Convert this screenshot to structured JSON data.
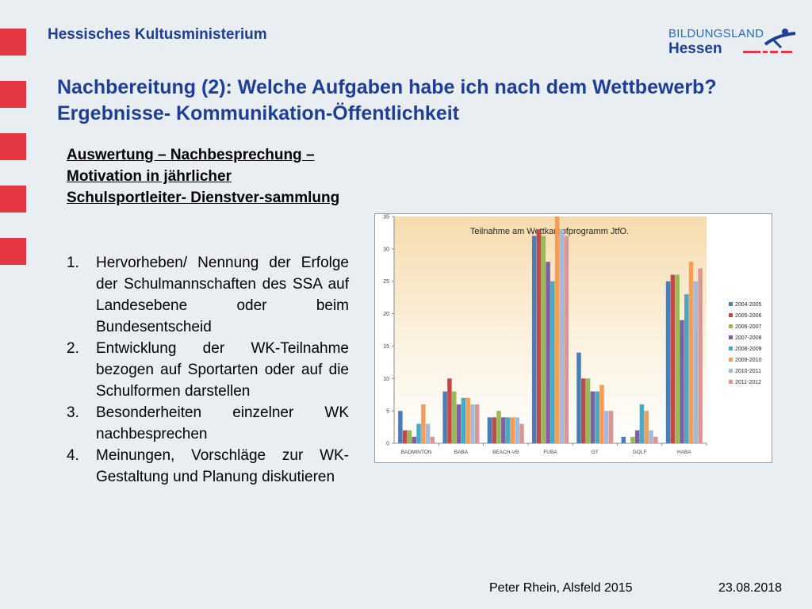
{
  "header": {
    "ministry": "Hessisches Kultusministerium",
    "logo_line1": "BILDUNGSLAND",
    "logo_line2": "Hessen"
  },
  "slide": {
    "title": "Nachbereitung (2): Welche Aufgaben habe ich nach dem Wettbewerb? Ergebnisse- Kommunikation-Öffentlichkeit",
    "subheading": "Auswertung – Nachbesprechung – Motivation in jährlicher Schulsportleiter- Dienstver-sammlung",
    "points": [
      {
        "num": "1.",
        "text": "Hervorheben/ Nennung der Erfolge der Schulmannschaften des SSA auf Landesebene oder beim Bundesentscheid"
      },
      {
        "num": "2.",
        "text": "Entwicklung der WK-Teilnahme bezogen auf Sportarten oder auf die Schulformen darstellen"
      },
      {
        "num": "3.",
        "text": "Besonderheiten einzelner WK nachbesprechen"
      },
      {
        "num": "4.",
        "text": "Meinungen, Vorschläge zur WK-Gestaltung und Planung diskutieren"
      }
    ]
  },
  "footer": {
    "author": "Peter Rhein, Alsfeld 2015",
    "date": "23.08.2018"
  },
  "chart_data": {
    "type": "bar",
    "title": "Teilnahme am Wettkampfprogramm JtfO.",
    "xlabel": "",
    "ylabel": "",
    "ylim": [
      0,
      35
    ],
    "yticks": [
      0,
      5,
      10,
      15,
      20,
      25,
      30,
      35
    ],
    "grid": false,
    "legend_position": "right",
    "categories": [
      "BADMINTON",
      "BABA",
      "BEACH-VB",
      "FUBA",
      "GT",
      "GOLF",
      "HABA"
    ],
    "series": [
      {
        "name": "2004-2005",
        "color": "#4a7ebb",
        "values": [
          5,
          8,
          4,
          32,
          14,
          1,
          25
        ]
      },
      {
        "name": "2005-2006",
        "color": "#be4b48",
        "values": [
          2,
          10,
          4,
          33,
          10,
          0,
          26
        ]
      },
      {
        "name": "2006-2007",
        "color": "#98b954",
        "values": [
          2,
          8,
          5,
          32,
          10,
          1,
          26
        ]
      },
      {
        "name": "2007-2008",
        "color": "#7d60a0",
        "values": [
          1,
          6,
          4,
          28,
          8,
          2,
          19
        ]
      },
      {
        "name": "2008-2009",
        "color": "#46aac4",
        "values": [
          3,
          7,
          4,
          25,
          8,
          6,
          23
        ]
      },
      {
        "name": "2009-2010",
        "color": "#f59d56",
        "values": [
          6,
          7,
          4,
          35,
          9,
          5,
          28
        ]
      },
      {
        "name": "2010-2011",
        "color": "#a5b9d9",
        "values": [
          3,
          6,
          4,
          33,
          5,
          2,
          25
        ]
      },
      {
        "name": "2011-2012",
        "color": "#d99694",
        "values": [
          1,
          6,
          3,
          32,
          5,
          1,
          27
        ]
      }
    ]
  }
}
